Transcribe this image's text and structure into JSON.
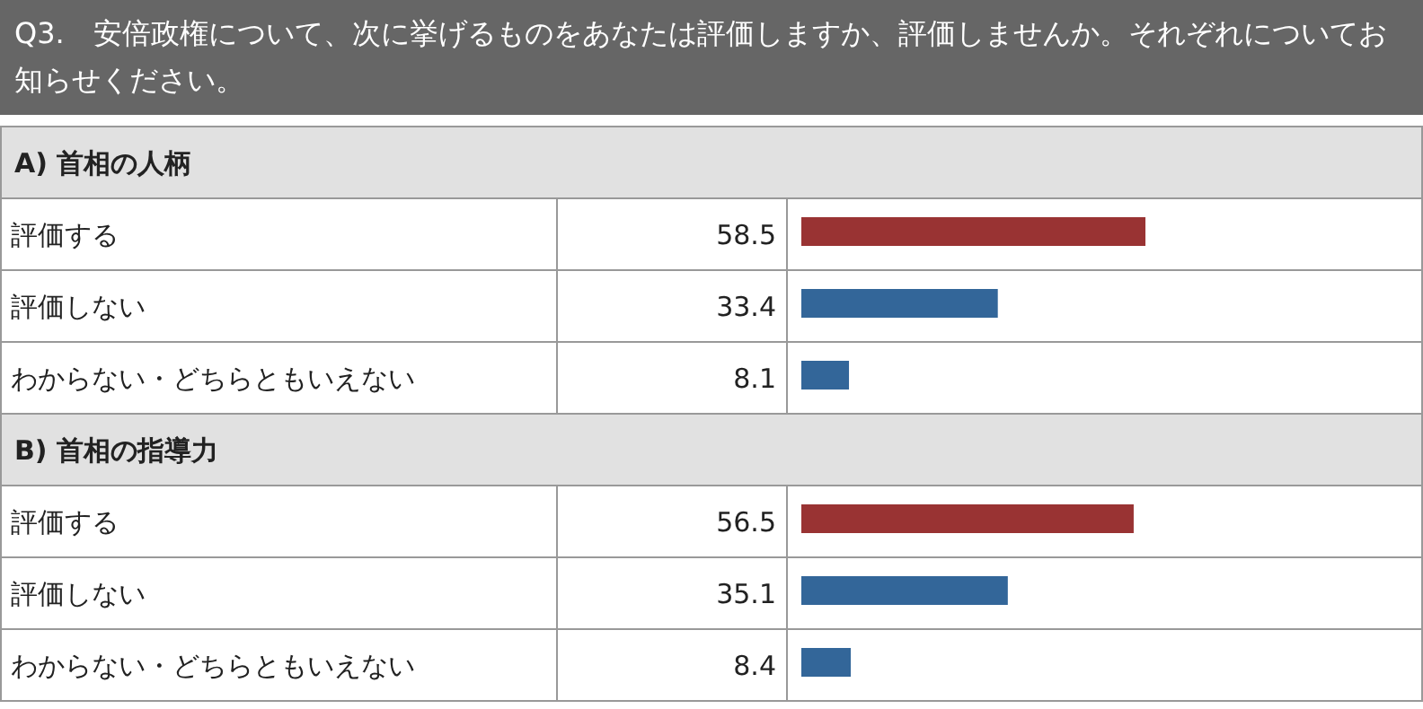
{
  "chart_data": [
    {
      "type": "other",
      "title": "Q3.　安倍政権について、次に挙げるものをあなたは評価しますか、評価しませんか。それぞれについてお知らせください。"
    },
    {
      "type": "bar",
      "orientation": "horizontal",
      "title": "A) 首相の人柄",
      "categories": [
        "評価する",
        "評価しない",
        "わからない・どちらともいえない"
      ],
      "values": [
        58.5,
        33.4,
        8.1
      ],
      "colors": [
        "#993333",
        "#336699",
        "#336699"
      ],
      "data_labels": true
    },
    {
      "type": "bar",
      "orientation": "horizontal",
      "title": "B) 首相の指導力",
      "categories": [
        "評価する",
        "評価しない",
        "わからない・どちらともいえない"
      ],
      "values": [
        56.5,
        35.1,
        8.4
      ],
      "colors": [
        "#993333",
        "#336699",
        "#336699"
      ],
      "data_labels": true
    }
  ]
}
